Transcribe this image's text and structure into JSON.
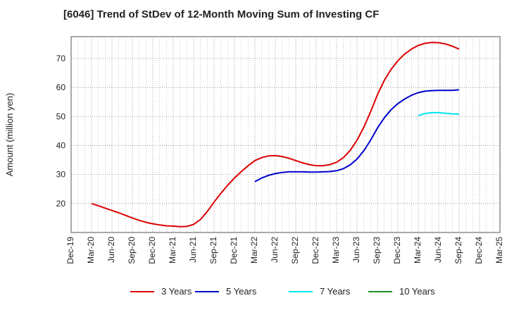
{
  "chart_data": {
    "type": "line",
    "title": "[6046]  Trend of StDev of 12-Month Moving Sum of Investing CF",
    "xlabel": "",
    "ylabel": "Amount (million yen)",
    "x_ticks": [
      "Dec-19",
      "Mar-20",
      "Jun-20",
      "Sep-20",
      "Dec-20",
      "Mar-21",
      "Jun-21",
      "Sep-21",
      "Dec-21",
      "Mar-22",
      "Jun-22",
      "Sep-22",
      "Dec-22",
      "Mar-23",
      "Jun-23",
      "Sep-23",
      "Dec-23",
      "Mar-24",
      "Jun-24",
      "Sep-24",
      "Dec-24",
      "Mar-25"
    ],
    "y_ticks": [
      20,
      30,
      40,
      50,
      60,
      70
    ],
    "ylim": [
      10,
      77.5
    ],
    "grid": true,
    "legend_position": "bottom",
    "series": [
      {
        "name": "3 Years",
        "color": "#dd0000",
        "x": [
          "Mar-20",
          "Apr-20",
          "May-20",
          "Jun-20",
          "Jul-20",
          "Aug-20",
          "Sep-20",
          "Oct-20",
          "Nov-20",
          "Dec-20",
          "Jan-21",
          "Feb-21",
          "Mar-21",
          "Apr-21",
          "May-21",
          "Jun-21",
          "Jul-21",
          "Aug-21",
          "Sep-21",
          "Oct-21",
          "Nov-21",
          "Dec-21",
          "Jan-22",
          "Feb-22",
          "Mar-22",
          "Apr-22",
          "May-22",
          "Jun-22",
          "Jul-22",
          "Aug-22",
          "Sep-22",
          "Oct-22",
          "Nov-22",
          "Dec-22",
          "Jan-23",
          "Feb-23",
          "Mar-23",
          "Apr-23",
          "May-23",
          "Jun-23",
          "Jul-23",
          "Aug-23",
          "Sep-23",
          "Oct-23",
          "Nov-23",
          "Dec-23",
          "Jan-24",
          "Feb-24",
          "Mar-24",
          "Apr-24",
          "May-24",
          "Jun-24",
          "Jul-24",
          "Aug-24",
          "Sep-24"
        ],
        "values": [
          20.0,
          19.2,
          18.4,
          17.6,
          16.8,
          15.9,
          15.0,
          14.2,
          13.5,
          13.0,
          12.6,
          12.3,
          12.2,
          12.0,
          12.1,
          12.8,
          14.5,
          17.2,
          20.5,
          23.5,
          26.3,
          28.8,
          31.0,
          33.0,
          34.8,
          35.8,
          36.4,
          36.5,
          36.2,
          35.6,
          34.8,
          34.0,
          33.4,
          33.0,
          33.0,
          33.4,
          34.2,
          35.8,
          38.3,
          41.8,
          46.3,
          51.6,
          57.5,
          62.4,
          66.2,
          69.2,
          71.5,
          73.2,
          74.5,
          75.2,
          75.5,
          75.4,
          75.0,
          74.2,
          73.2
        ]
      },
      {
        "name": "5 Years",
        "color": "#0000cc",
        "x": [
          "Mar-22",
          "Apr-22",
          "May-22",
          "Jun-22",
          "Jul-22",
          "Aug-22",
          "Sep-22",
          "Oct-22",
          "Nov-22",
          "Dec-22",
          "Jan-23",
          "Feb-23",
          "Mar-23",
          "Apr-23",
          "May-23",
          "Jun-23",
          "Jul-23",
          "Aug-23",
          "Sep-23",
          "Oct-23",
          "Nov-23",
          "Dec-23",
          "Jan-24",
          "Feb-24",
          "Mar-24",
          "Apr-24",
          "May-24",
          "Jun-24",
          "Jul-24",
          "Aug-24",
          "Sep-24"
        ],
        "values": [
          27.5,
          28.8,
          29.7,
          30.3,
          30.7,
          30.9,
          30.9,
          30.9,
          30.8,
          30.8,
          30.9,
          31.0,
          31.3,
          32.0,
          33.3,
          35.3,
          38.2,
          41.8,
          46.0,
          49.5,
          52.3,
          54.4,
          56.0,
          57.3,
          58.2,
          58.7,
          58.9,
          59.0,
          59.0,
          59.0,
          59.2
        ]
      },
      {
        "name": "7 Years",
        "color": "#00e5ee",
        "x": [
          "Mar-24",
          "Apr-24",
          "May-24",
          "Jun-24",
          "Jul-24",
          "Aug-24",
          "Sep-24"
        ],
        "values": [
          50.3,
          51.0,
          51.3,
          51.3,
          51.1,
          50.9,
          50.8
        ]
      },
      {
        "name": "10 Years",
        "color": "#228b22",
        "x": [],
        "values": []
      }
    ]
  }
}
